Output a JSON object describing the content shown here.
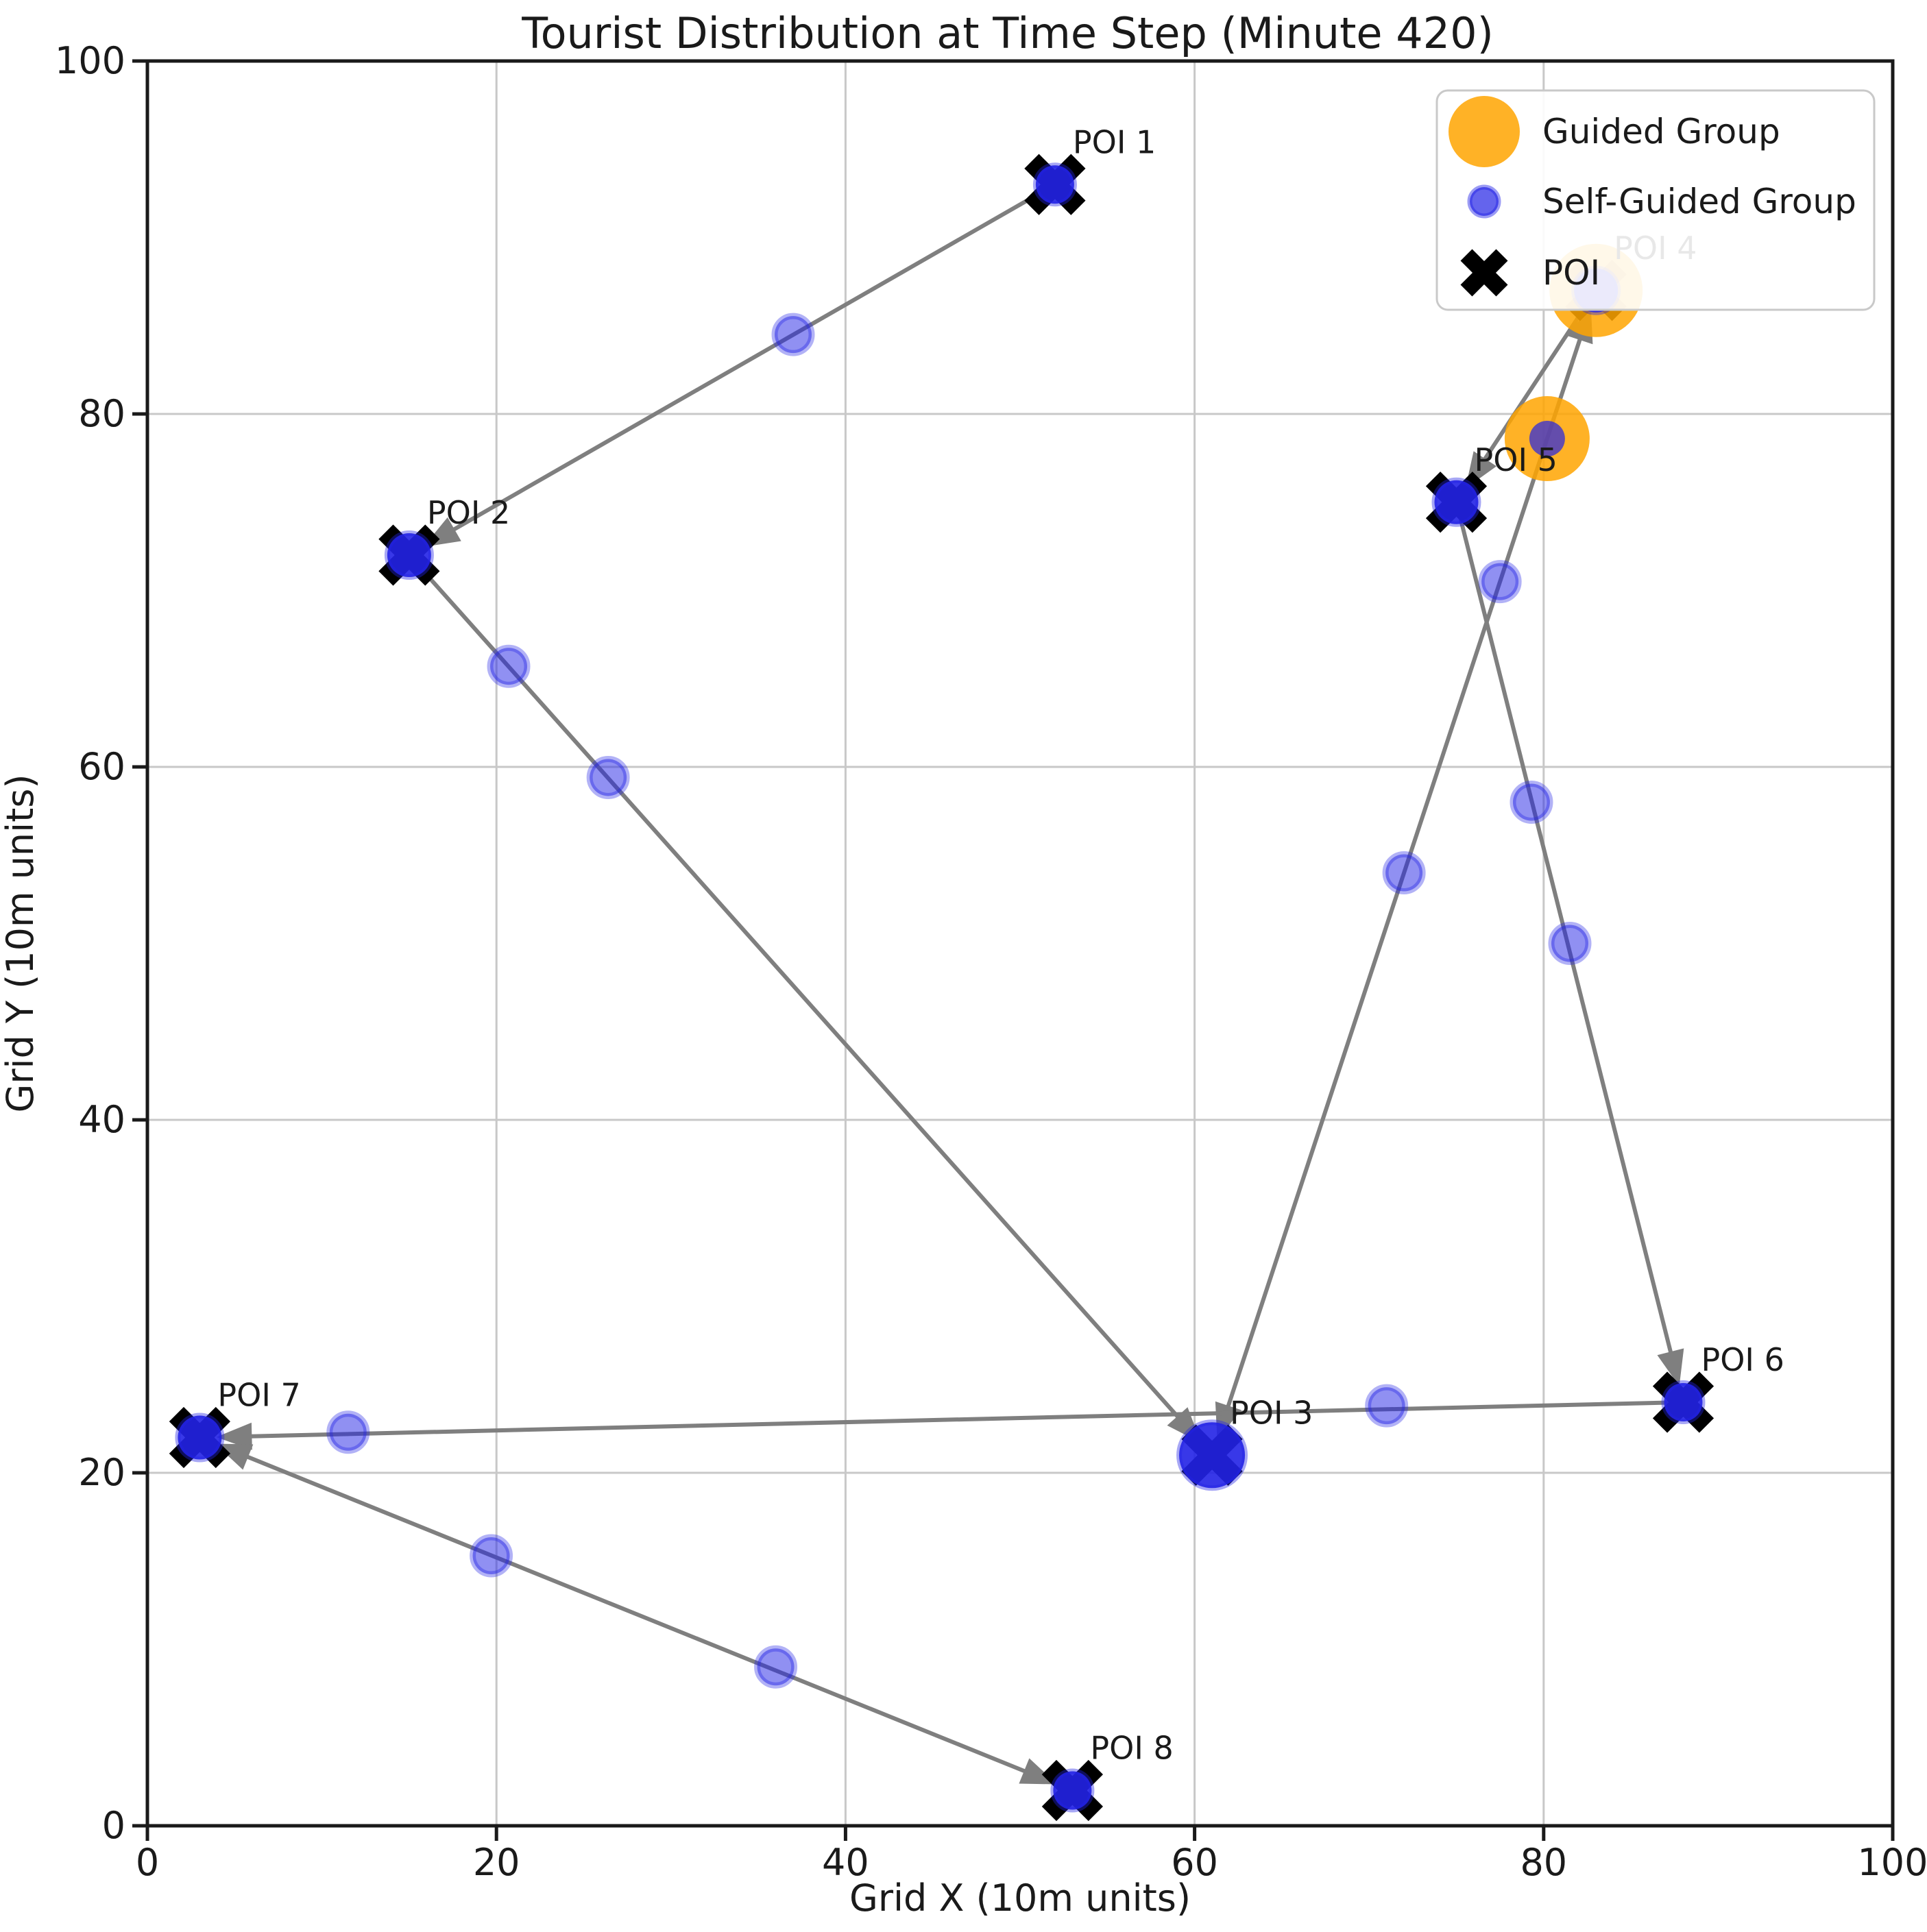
{
  "figure": {
    "title": "Tourist Distribution at Time Step (Minute 420)",
    "background": "#ffffff"
  },
  "axes": {
    "xlabel": "Grid X (10m units)",
    "ylabel": "Grid Y (10m units)",
    "xlim": [
      0,
      100
    ],
    "ylim": [
      0,
      100
    ],
    "xticks": [
      "0",
      "20",
      "40",
      "60",
      "80",
      "100"
    ],
    "yticks": [
      "0",
      "20",
      "40",
      "60",
      "80",
      "100"
    ],
    "grid": true
  },
  "legend": {
    "position": "upper-right",
    "items": [
      {
        "label": "Guided Group",
        "marker": "large-orange-circle"
      },
      {
        "label": "Self-Guided Group",
        "marker": "small-blue-circle"
      },
      {
        "label": "POI",
        "marker": "black-x-marker"
      }
    ]
  },
  "colors": {
    "guided_group": "#FFA500",
    "self_guided_group": "#2222E6",
    "poi_marker": "#000000",
    "arrow": "#7F7F7F",
    "grid": "#C8C8C8",
    "spine": "#1A1A1A",
    "text": "#1A1A1A"
  },
  "chart_data": {
    "type": "scatter",
    "title": "Tourist Distribution at Time Step (Minute 420)",
    "xlabel": "Grid X (10m units)",
    "ylabel": "Grid Y (10m units)",
    "xlim": [
      0,
      100
    ],
    "ylim": [
      0,
      100
    ],
    "grid": "on",
    "legend_position": "upper right",
    "pois": [
      {
        "name": "POI 1",
        "x": 52,
        "y": 93
      },
      {
        "name": "POI 2",
        "x": 15,
        "y": 72
      },
      {
        "name": "POI 3",
        "x": 61,
        "y": 21
      },
      {
        "name": "POI 4",
        "x": 83,
        "y": 87
      },
      {
        "name": "POI 5",
        "x": 75,
        "y": 75
      },
      {
        "name": "POI 6",
        "x": 88,
        "y": 24
      },
      {
        "name": "POI 7",
        "x": 3,
        "y": 22
      },
      {
        "name": "POI 8",
        "x": 53,
        "y": 2
      }
    ],
    "routes": [
      {
        "from": "POI 1",
        "to": "POI 2",
        "arrows": "end"
      },
      {
        "from": "POI 2",
        "to": "POI 3",
        "arrows": "end"
      },
      {
        "from": "POI 3",
        "to": "POI 4",
        "arrows": "both"
      },
      {
        "from": "POI 4",
        "to": "POI 5",
        "arrows": "end"
      },
      {
        "from": "POI 5",
        "to": "POI 6",
        "arrows": "end"
      },
      {
        "from": "POI 6",
        "to": "POI 7",
        "arrows": "end"
      },
      {
        "from": "POI 7",
        "to": "POI 8",
        "arrows": "both"
      }
    ],
    "self_guided_groups_at_pois": [
      {
        "poi": "POI 1",
        "r": 28
      },
      {
        "poi": "POI 2",
        "r": 32
      },
      {
        "poi": "POI 3",
        "r": 48
      },
      {
        "poi": "POI 4",
        "r": 32
      },
      {
        "poi": "POI 5",
        "r": 32
      },
      {
        "poi": "POI 6",
        "r": 28
      },
      {
        "poi": "POI 7",
        "r": 32
      },
      {
        "poi": "POI 8",
        "r": 28
      }
    ],
    "self_guided_groups_en_route": [
      {
        "x": 37,
        "y": 84.5
      },
      {
        "x": 20.7,
        "y": 65.7
      },
      {
        "x": 26.4,
        "y": 59.4
      },
      {
        "x": 72,
        "y": 54
      },
      {
        "x": 77.5,
        "y": 70.5
      },
      {
        "x": 79.3,
        "y": 58
      },
      {
        "x": 81.5,
        "y": 50
      },
      {
        "x": 71,
        "y": 23.8
      },
      {
        "x": 11.5,
        "y": 22.3
      },
      {
        "x": 19.7,
        "y": 15.3
      },
      {
        "x": 36,
        "y": 9
      }
    ],
    "guided_groups": [
      {
        "x": 83,
        "y": 87,
        "r": 68,
        "at_poi": "POI 4"
      },
      {
        "x": 80.2,
        "y": 78.6,
        "r": 62,
        "with_self_guided_dot": true
      }
    ]
  }
}
